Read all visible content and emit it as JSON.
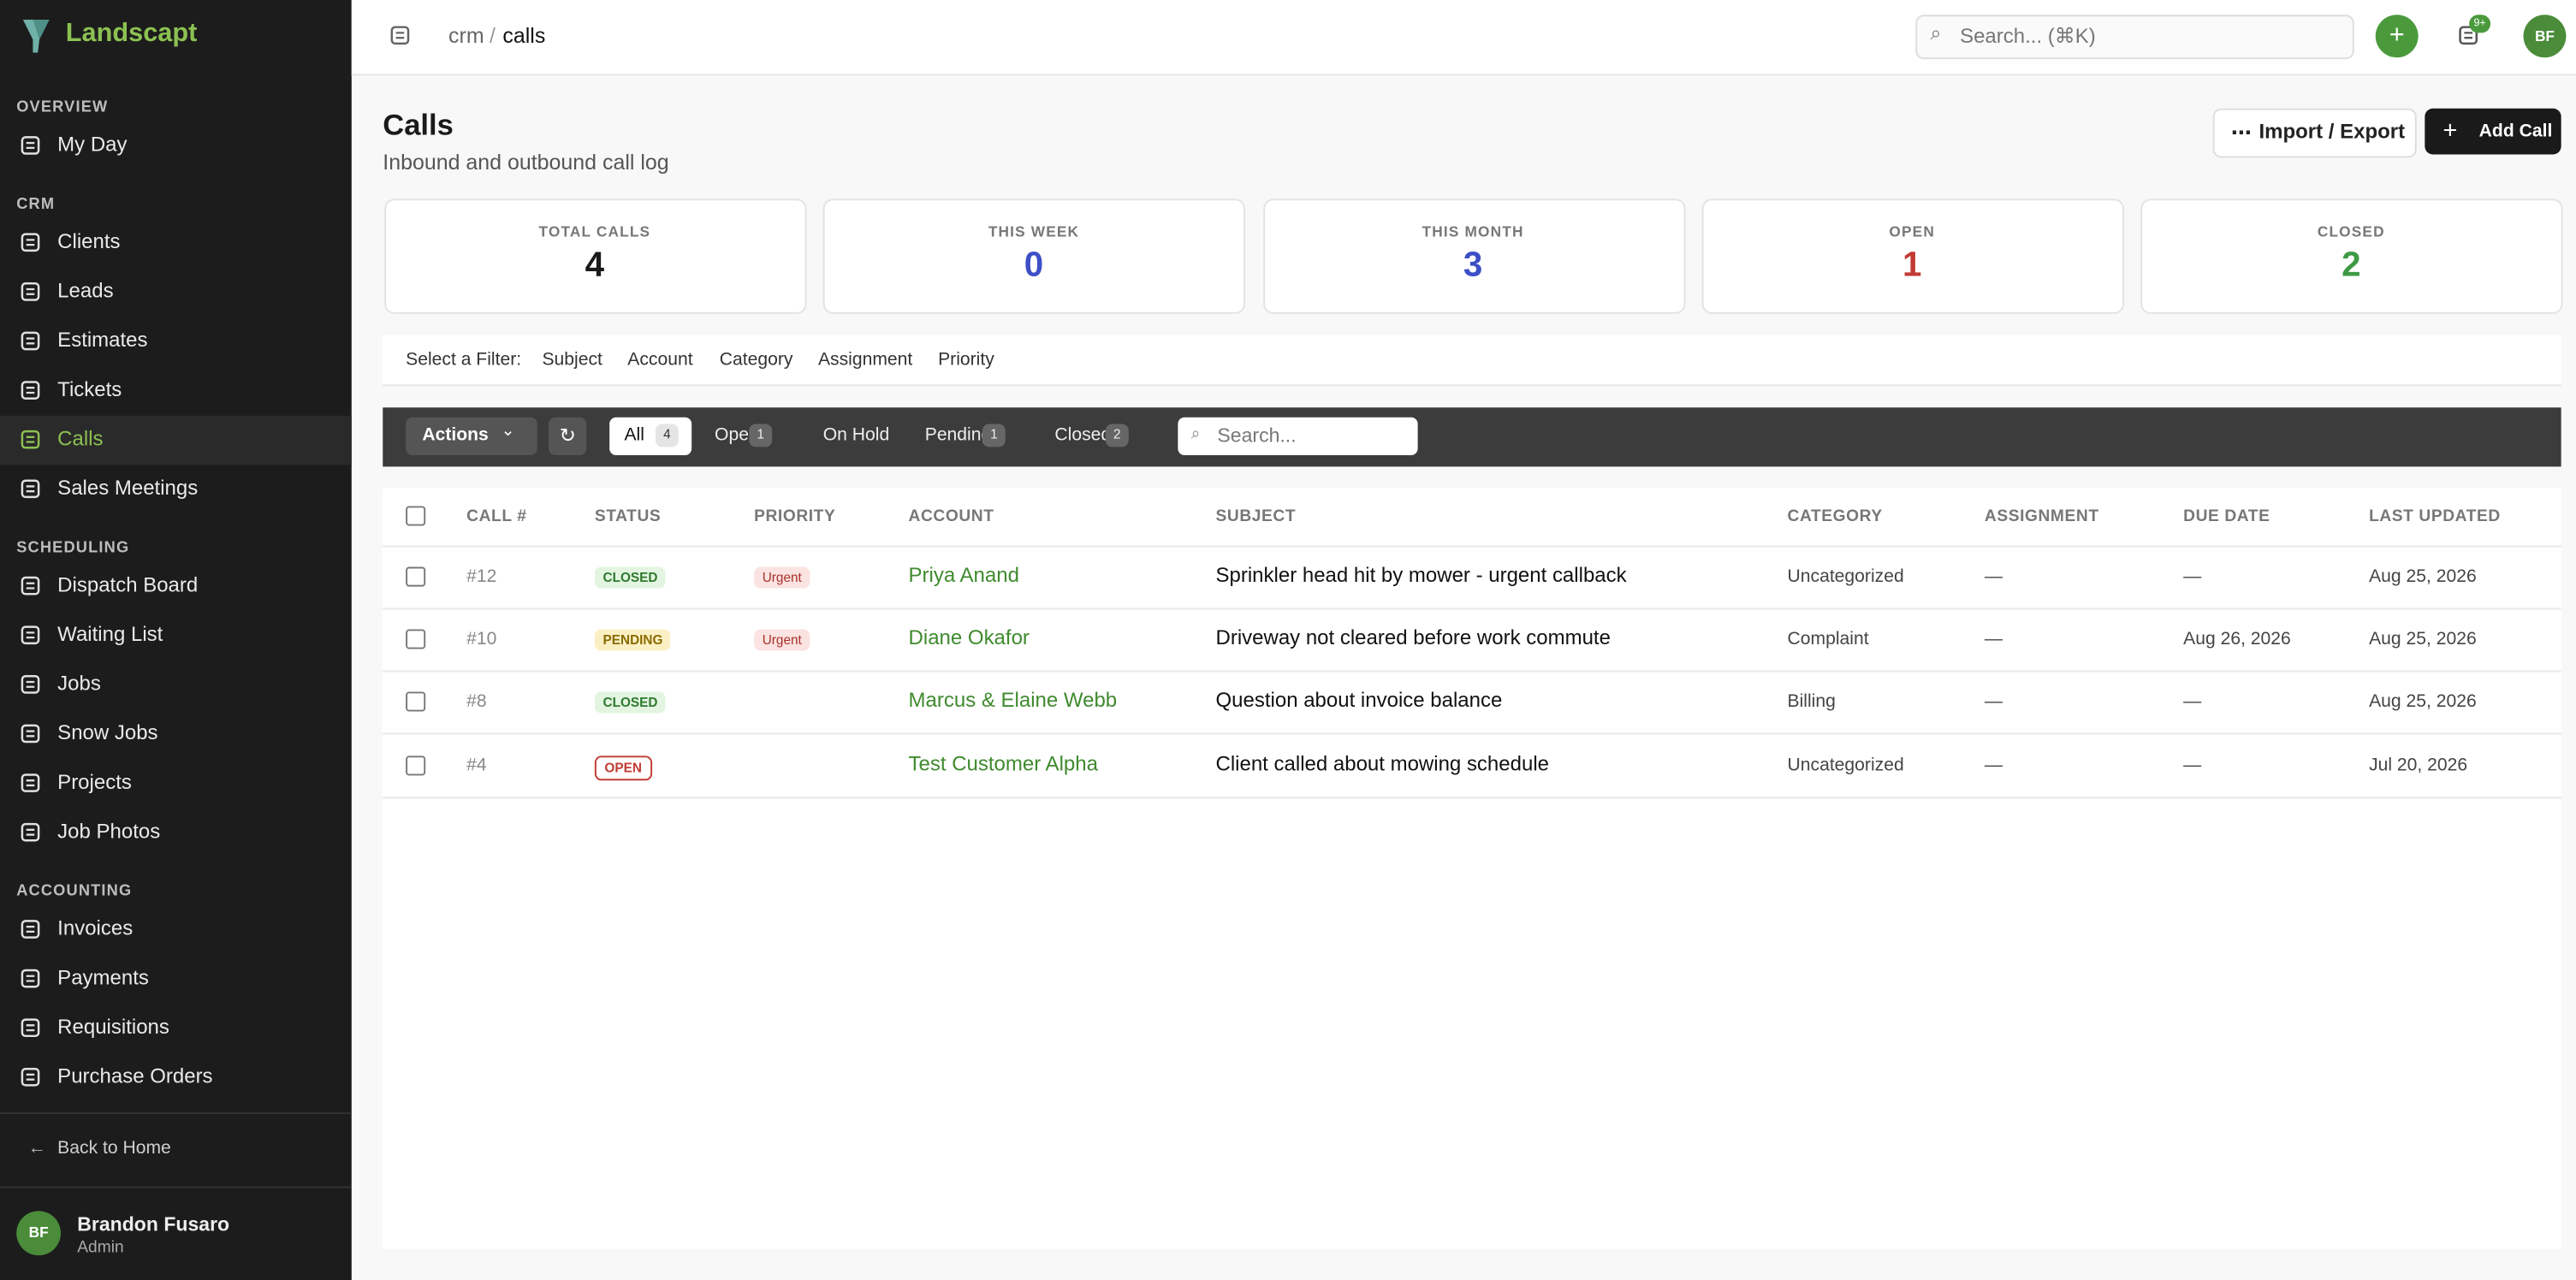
{
  "sidebar": {
    "brand": "Landscapt",
    "sections": [
      {
        "title": "OVERVIEW",
        "items": [
          "My Day"
        ]
      },
      {
        "title": "CRM",
        "items": [
          "Clients",
          "Leads",
          "Estimates",
          "Tickets",
          "Calls",
          "Sales Meetings"
        ]
      },
      {
        "title": "SCHEDULING",
        "items": [
          "Dispatch Board",
          "Waiting List",
          "Jobs",
          "Snow Jobs",
          "Projects",
          "Job Photos"
        ]
      },
      {
        "title": "ACCOUNTING",
        "items": [
          "Invoices",
          "Payments",
          "Requisitions",
          "Purchase Orders"
        ]
      }
    ],
    "back": "Back to Home",
    "user": {
      "initials": "BF",
      "name": "Brandon Fusaro",
      "role": "Admin"
    }
  },
  "topbar": {
    "breadcrumb": [
      "crm",
      "calls"
    ],
    "separator": "/",
    "search": "Search... (⌘K)",
    "badge": "9+",
    "avatar": "BF"
  },
  "header": {
    "title": "Calls",
    "subtitle": "Inbound and outbound call log",
    "import_export": "Import / Export",
    "add": "Add Call"
  },
  "stats": [
    {
      "label": "TOTAL CALLS",
      "value": 4,
      "color": "#1a1a1a"
    },
    {
      "label": "THIS WEEK",
      "value": 0,
      "color": "#3d4fc7"
    },
    {
      "label": "THIS MONTH",
      "value": 3,
      "color": "#3d4fc7"
    },
    {
      "label": "OPEN",
      "value": 1,
      "color": "#c23a34"
    },
    {
      "label": "CLOSED",
      "value": 2,
      "color": "#3f9a45"
    }
  ],
  "filter": {
    "label": "Select a Filter:",
    "options": [
      "Subject",
      "Account",
      "Category",
      "Assignment",
      "Priority"
    ]
  },
  "toolbar": {
    "actions": "Actions",
    "search": "Search...",
    "tabs": [
      {
        "label": "All",
        "count": 4
      },
      {
        "label": "Open",
        "count": 1
      },
      {
        "label": "On Hold",
        "count": null
      },
      {
        "label": "Pending",
        "count": 1
      },
      {
        "label": "Closed",
        "count": 2
      }
    ]
  },
  "table": {
    "columns": [
      "CALL #",
      "STATUS",
      "PRIORITY",
      "ACCOUNT",
      "SUBJECT",
      "CATEGORY",
      "ASSIGNMENT",
      "DUE DATE",
      "LAST UPDATED"
    ],
    "rows": [
      [
        "#12",
        "CLOSED",
        "Urgent",
        "Priya Anand",
        "Sprinkler head hit by mower - urgent callback",
        "Uncategorized",
        "—",
        "—",
        "Aug 25, 2026"
      ],
      [
        "#10",
        "PENDING",
        "Urgent",
        "Diane Okafor",
        "Driveway not cleared before work commute",
        "Complaint",
        "—",
        "Aug 26, 2026",
        "Aug 25, 2026"
      ],
      [
        "#8",
        "CLOSED",
        null,
        "Marcus & Elaine Webb",
        "Question about invoice balance",
        "Billing",
        "—",
        "—",
        "Aug 25, 2026"
      ],
      [
        "#4",
        "OPEN",
        null,
        "Test Customer Alpha",
        "Client called about mowing schedule",
        "Uncategorized",
        "—",
        "—",
        "Jul 20, 2026"
      ]
    ]
  }
}
